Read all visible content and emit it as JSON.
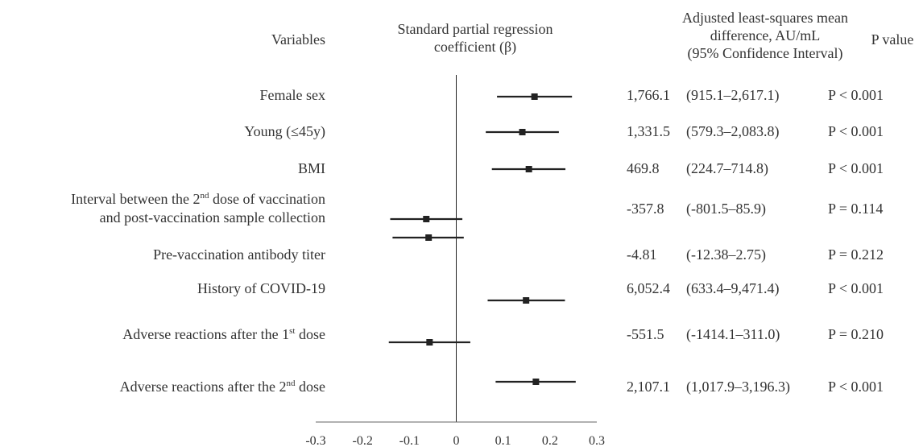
{
  "headers": {
    "variables": "Variables",
    "beta_line1": "Standard partial regression",
    "beta_line2": "coefficient (β)",
    "diff_line1": "Adjusted least-squares mean",
    "diff_line2": "difference, AU/mL",
    "diff_line3": "(95% Confidence Interval)",
    "pvalue": "P value"
  },
  "rows": [
    {
      "label": "Female sex",
      "mean": "1,766.1",
      "ci": "(915.1–2,617.1)",
      "p": "P < 0.001"
    },
    {
      "label": "Young (≤45y)",
      "mean": "1,331.5",
      "ci": "(579.3–2,083.8)",
      "p": "P < 0.001"
    },
    {
      "label": "BMI",
      "mean": "469.8",
      "ci": "(224.7–714.8)",
      "p": "P < 0.001"
    },
    {
      "label_a": "Interval between the 2",
      "label_sup": "nd",
      "label_b": " dose of vaccination",
      "label_line2": "and post-vaccination sample collection",
      "mean": "-357.8",
      "ci": "(-801.5–85.9)",
      "p": "P = 0.114"
    },
    {
      "label": "Pre-vaccination antibody titer",
      "mean": "-4.81",
      "ci": "(-12.38–2.75)",
      "p": "P = 0.212"
    },
    {
      "label": "History of COVID-19",
      "mean": "6,052.4",
      "ci": "(633.4–9,471.4)",
      "p": "P < 0.001"
    },
    {
      "label_a": "Adverse reactions after the 1",
      "label_sup": "st",
      "label_b": " dose",
      "mean": "-551.5",
      "ci": "(-1414.1–311.0)",
      "p": "P = 0.210"
    },
    {
      "label_a": "Adverse reactions after the 2",
      "label_sup": "nd",
      "label_b": " dose",
      "mean": "2,107.1",
      "ci": "(1,017.9–3,196.3)",
      "p": "P < 0.001"
    }
  ],
  "chart_data": {
    "type": "forest",
    "xlim": [
      -0.3,
      0.3
    ],
    "ticks": [
      "-0.3",
      "-0.2",
      "-0.1",
      "0",
      "0.1",
      "0.2",
      "0.3"
    ],
    "reference_line": 0,
    "grid": false,
    "marker_color": "#222222",
    "points": [
      {
        "estimate": 0.167,
        "low": 0.087,
        "high": 0.247
      },
      {
        "estimate": 0.141,
        "low": 0.063,
        "high": 0.219
      },
      {
        "estimate": 0.155,
        "low": 0.076,
        "high": 0.233
      },
      {
        "estimate": -0.064,
        "low": -0.141,
        "high": 0.013
      },
      {
        "estimate": -0.059,
        "low": -0.136,
        "high": 0.016
      },
      {
        "estimate": 0.149,
        "low": 0.067,
        "high": 0.232
      },
      {
        "estimate": -0.057,
        "low": -0.144,
        "high": 0.03
      },
      {
        "estimate": 0.17,
        "low": 0.084,
        "high": 0.255
      }
    ]
  }
}
